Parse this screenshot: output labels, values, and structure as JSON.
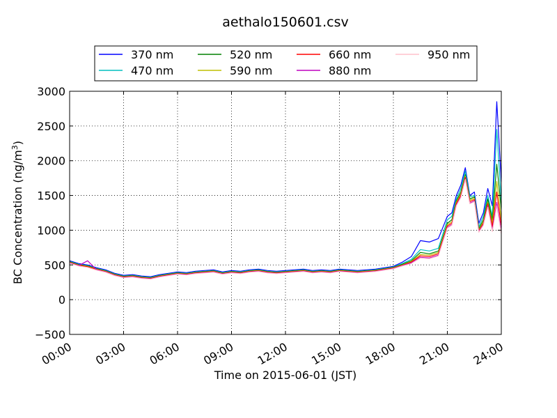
{
  "chart_data": {
    "type": "line",
    "title": "aethalo150601.csv",
    "xlabel": "Time on 2015-06-01 (JST)",
    "ylabel": "BC Concentration (ng/m",
    "ylabel_sup": "3",
    "ylabel_close": ")",
    "xlim": [
      0,
      24
    ],
    "ylim": [
      -500,
      3000
    ],
    "x_ticks": [
      0,
      3,
      6,
      9,
      12,
      15,
      18,
      21,
      24
    ],
    "x_tick_labels": [
      "00:00",
      "03:00",
      "06:00",
      "09:00",
      "12:00",
      "15:00",
      "18:00",
      "21:00",
      "24:00"
    ],
    "y_ticks": [
      -500,
      0,
      500,
      1000,
      1500,
      2000,
      2500,
      3000
    ],
    "y_tick_labels": [
      "−500",
      "0",
      "500",
      "1000",
      "1500",
      "2000",
      "2500",
      "3000"
    ],
    "grid": true,
    "legend_placement": "top-center",
    "x": [
      0,
      0.5,
      1,
      1.5,
      2,
      2.5,
      3,
      3.5,
      4,
      4.5,
      5,
      5.5,
      6,
      6.5,
      7,
      7.5,
      8,
      8.5,
      9,
      9.5,
      10,
      10.5,
      11,
      11.5,
      12,
      12.5,
      13,
      13.5,
      14,
      14.5,
      15,
      15.5,
      16,
      16.5,
      17,
      17.5,
      18,
      18.5,
      19,
      19.5,
      20,
      20.5,
      21,
      21.25,
      21.5,
      21.75,
      22,
      22.25,
      22.5,
      22.75,
      23,
      23.25,
      23.5,
      23.75,
      24
    ],
    "series": [
      {
        "name": "370 nm",
        "color": "#0000ff",
        "values": [
          560,
          520,
          500,
          460,
          430,
          380,
          350,
          360,
          340,
          330,
          360,
          380,
          400,
          390,
          410,
          420,
          430,
          400,
          420,
          410,
          430,
          440,
          420,
          410,
          420,
          430,
          440,
          420,
          430,
          420,
          440,
          430,
          420,
          430,
          440,
          460,
          480,
          540,
          620,
          850,
          830,
          880,
          1200,
          1250,
          1500,
          1650,
          1900,
          1500,
          1550,
          1100,
          1250,
          1600,
          1350,
          2850,
          1700
        ]
      },
      {
        "name": "470 nm",
        "color": "#00bfbf",
        "values": [
          550,
          510,
          490,
          450,
          420,
          370,
          340,
          350,
          330,
          320,
          350,
          370,
          390,
          380,
          400,
          410,
          420,
          390,
          410,
          400,
          420,
          430,
          410,
          400,
          410,
          420,
          430,
          410,
          420,
          410,
          430,
          420,
          410,
          420,
          430,
          450,
          470,
          520,
          580,
          720,
          700,
          740,
          1150,
          1200,
          1450,
          1600,
          1850,
          1480,
          1500,
          1050,
          1200,
          1500,
          1200,
          2450,
          1400
        ]
      },
      {
        "name": "520 nm",
        "color": "#008000",
        "values": [
          545,
          505,
          485,
          445,
          415,
          365,
          335,
          345,
          325,
          315,
          345,
          365,
          385,
          375,
          395,
          405,
          415,
          385,
          405,
          395,
          415,
          425,
          405,
          395,
          405,
          415,
          425,
          405,
          415,
          405,
          425,
          415,
          405,
          415,
          425,
          445,
          465,
          510,
          560,
          680,
          660,
          700,
          1100,
          1150,
          1420,
          1550,
          1800,
          1450,
          1480,
          1020,
          1150,
          1450,
          1150,
          1950,
          1300
        ]
      },
      {
        "name": "590 nm",
        "color": "#bfbf00",
        "values": [
          540,
          500,
          480,
          440,
          410,
          360,
          330,
          340,
          320,
          310,
          340,
          360,
          380,
          370,
          390,
          400,
          410,
          380,
          400,
          390,
          410,
          420,
          400,
          390,
          400,
          410,
          420,
          400,
          410,
          400,
          420,
          410,
          400,
          410,
          420,
          440,
          460,
          500,
          550,
          650,
          640,
          680,
          1080,
          1120,
          1400,
          1520,
          1780,
          1430,
          1460,
          1000,
          1120,
          1400,
          1100,
          1700,
          1150
        ]
      },
      {
        "name": "660 nm",
        "color": "#ff0000",
        "values": [
          535,
          495,
          475,
          435,
          405,
          355,
          325,
          335,
          315,
          305,
          335,
          355,
          375,
          365,
          385,
          395,
          405,
          375,
          395,
          385,
          405,
          415,
          395,
          385,
          395,
          405,
          415,
          395,
          405,
          395,
          415,
          405,
          395,
          405,
          415,
          435,
          455,
          495,
          540,
          630,
          620,
          660,
          1060,
          1100,
          1380,
          1500,
          1760,
          1410,
          1440,
          990,
          1100,
          1380,
          1050,
          1550,
          1050
        ]
      },
      {
        "name": "880 nm",
        "color": "#bf00bf",
        "values": [
          530,
          490,
          560,
          430,
          400,
          350,
          320,
          330,
          310,
          300,
          330,
          350,
          370,
          360,
          380,
          390,
          400,
          370,
          390,
          380,
          400,
          410,
          390,
          380,
          390,
          400,
          410,
          390,
          400,
          390,
          410,
          400,
          390,
          400,
          410,
          430,
          450,
          490,
          530,
          610,
          600,
          640,
          1040,
          1080,
          1360,
          1480,
          1740,
          1390,
          1420,
          980,
          1080,
          1350,
          1000,
          1400,
          980
        ]
      },
      {
        "name": "950 nm",
        "color": "#ffc0cb",
        "values": [
          525,
          485,
          465,
          425,
          395,
          345,
          315,
          325,
          305,
          295,
          325,
          345,
          365,
          355,
          375,
          385,
          395,
          365,
          385,
          375,
          395,
          405,
          385,
          375,
          385,
          395,
          405,
          385,
          395,
          385,
          405,
          395,
          385,
          395,
          405,
          425,
          445,
          485,
          520,
          600,
          590,
          630,
          1030,
          1070,
          1350,
          1470,
          1730,
          1380,
          1410,
          970,
          1070,
          1330,
          980,
          1350,
          950
        ]
      }
    ]
  }
}
